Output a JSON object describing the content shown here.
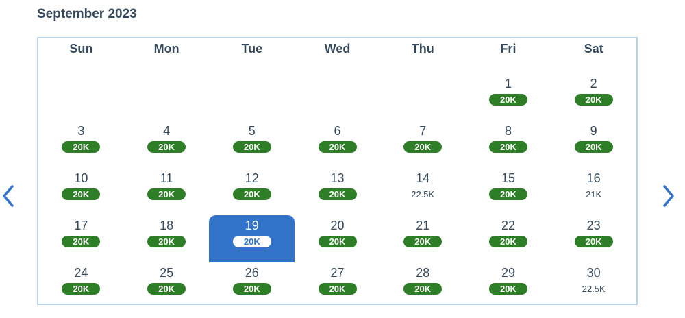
{
  "month_label": "September 2023",
  "weekdays": [
    "Sun",
    "Mon",
    "Tue",
    "Wed",
    "Thu",
    "Fri",
    "Sat"
  ],
  "selected_date": "19",
  "colors": {
    "badge_green": "#2e7d27",
    "selected_blue": "#3173c9",
    "border": "#b9d3ea",
    "text": "#36495a"
  },
  "icons": {
    "prev": "chevron-left-icon",
    "next": "chevron-right-icon"
  },
  "weeks": [
    [
      null,
      null,
      null,
      null,
      null,
      {
        "day": "1",
        "price": "20K",
        "badge": true
      },
      {
        "day": "2",
        "price": "20K",
        "badge": true
      }
    ],
    [
      {
        "day": "3",
        "price": "20K",
        "badge": true
      },
      {
        "day": "4",
        "price": "20K",
        "badge": true
      },
      {
        "day": "5",
        "price": "20K",
        "badge": true
      },
      {
        "day": "6",
        "price": "20K",
        "badge": true
      },
      {
        "day": "7",
        "price": "20K",
        "badge": true
      },
      {
        "day": "8",
        "price": "20K",
        "badge": true
      },
      {
        "day": "9",
        "price": "20K",
        "badge": true
      }
    ],
    [
      {
        "day": "10",
        "price": "20K",
        "badge": true
      },
      {
        "day": "11",
        "price": "20K",
        "badge": true
      },
      {
        "day": "12",
        "price": "20K",
        "badge": true
      },
      {
        "day": "13",
        "price": "20K",
        "badge": true
      },
      {
        "day": "14",
        "price": "22.5K",
        "badge": false
      },
      {
        "day": "15",
        "price": "20K",
        "badge": true
      },
      {
        "day": "16",
        "price": "21K",
        "badge": false
      }
    ],
    [
      {
        "day": "17",
        "price": "20K",
        "badge": true
      },
      {
        "day": "18",
        "price": "20K",
        "badge": true
      },
      {
        "day": "19",
        "price": "20K",
        "badge": true,
        "selected": true
      },
      {
        "day": "20",
        "price": "20K",
        "badge": true
      },
      {
        "day": "21",
        "price": "20K",
        "badge": true
      },
      {
        "day": "22",
        "price": "20K",
        "badge": true
      },
      {
        "day": "23",
        "price": "20K",
        "badge": true
      }
    ],
    [
      {
        "day": "24",
        "price": "20K",
        "badge": true
      },
      {
        "day": "25",
        "price": "20K",
        "badge": true
      },
      {
        "day": "26",
        "price": "20K",
        "badge": true
      },
      {
        "day": "27",
        "price": "20K",
        "badge": true
      },
      {
        "day": "28",
        "price": "20K",
        "badge": true
      },
      {
        "day": "29",
        "price": "20K",
        "badge": true
      },
      {
        "day": "30",
        "price": "22.5K",
        "badge": false
      }
    ]
  ]
}
